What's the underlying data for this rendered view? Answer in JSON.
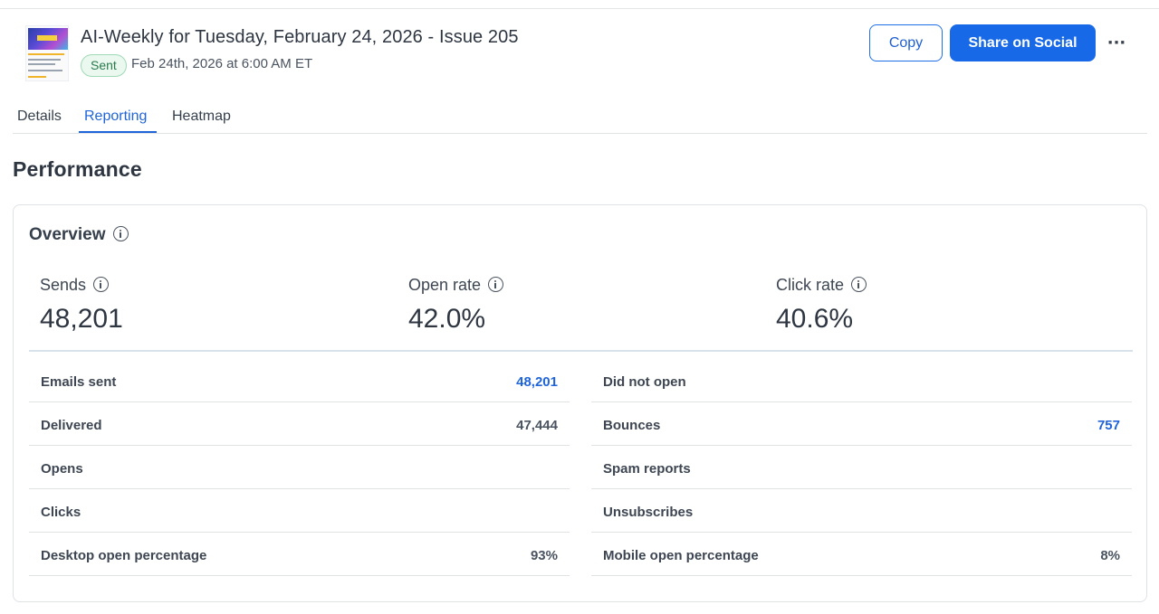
{
  "header": {
    "title": "AI-Weekly for Tuesday, February 24, 2026 - Issue 205",
    "status_badge": "Sent",
    "sent_date": "Feb 24th, 2026 at 6:00 AM ET",
    "copy_label": "Copy",
    "share_label": "Share on Social",
    "more_label": "···"
  },
  "tabs": [
    {
      "label": "Details",
      "active": false
    },
    {
      "label": "Reporting",
      "active": true
    },
    {
      "label": "Heatmap",
      "active": false
    }
  ],
  "performance": {
    "title": "Performance",
    "overview_title": "Overview",
    "stats": [
      {
        "label": "Sends",
        "value": "48,201"
      },
      {
        "label": "Open rate",
        "value": "42.0%"
      },
      {
        "label": "Click rate",
        "value": "40.6%"
      }
    ],
    "left_rows": [
      {
        "label": "Emails sent",
        "value": "48,201",
        "link": true
      },
      {
        "label": "Delivered",
        "value": "47,444",
        "link": false
      },
      {
        "label": "Opens",
        "value": "",
        "link": false
      },
      {
        "label": "Clicks",
        "value": "",
        "link": false
      },
      {
        "label": "Desktop open percentage",
        "value": "93%",
        "link": false
      }
    ],
    "right_rows": [
      {
        "label": "Did not open",
        "value": "",
        "link": false
      },
      {
        "label": "Bounces",
        "value": "757",
        "link": true
      },
      {
        "label": "Spam reports",
        "value": "",
        "link": false
      },
      {
        "label": "Unsubscribes",
        "value": "",
        "link": false
      },
      {
        "label": "Mobile open percentage",
        "value": "8%",
        "link": false
      }
    ]
  },
  "colors": {
    "accent": "#1769e8",
    "link": "#1f64d8",
    "sent_badge_bg": "#eaf8ef",
    "sent_badge_text": "#2a7a4d"
  }
}
